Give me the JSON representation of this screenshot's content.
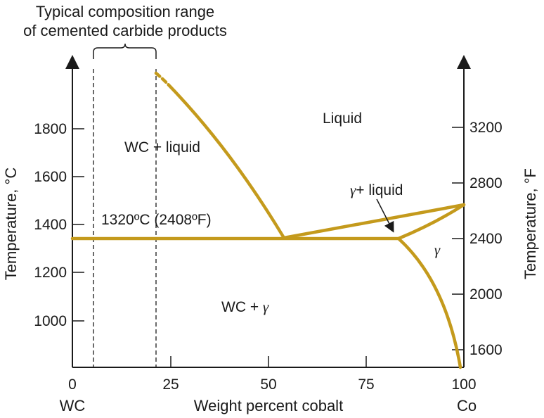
{
  "caption": {
    "line1": "Typical composition range",
    "line2": "of cemented carbide products"
  },
  "x_axis": {
    "title": "Weight percent cobalt",
    "ticks": [
      "0",
      "25",
      "50",
      "75",
      "100"
    ],
    "left_end": "WC",
    "right_end": "Co"
  },
  "y_axis_left": {
    "title": "Temperature, °C",
    "ticks": [
      "1000",
      "1200",
      "1400",
      "1600",
      "1800"
    ]
  },
  "y_axis_right": {
    "title": "Temperature, °F",
    "ticks": [
      "1600",
      "2000",
      "2400",
      "2800",
      "3200"
    ]
  },
  "regions": {
    "liquid": "Liquid",
    "wc_liquid": "WC + liquid",
    "gamma_liquid_symbol": "γ",
    "gamma_liquid_text": "+ liquid",
    "eutectic": "1320ºC  (2408ºF)",
    "wc_gamma_text": "WC + ",
    "wc_gamma_symbol": "γ",
    "gamma": "γ"
  },
  "colors": {
    "phase_line": "#c49a1c",
    "axis": "#1a1a1a"
  }
}
